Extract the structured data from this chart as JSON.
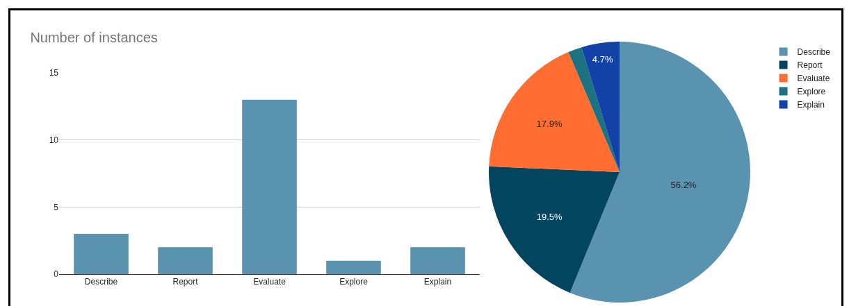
{
  "chart_data": [
    {
      "type": "bar",
      "title": "Number of instances",
      "categories": [
        "Describe",
        "Report",
        "Evaluate",
        "Explore",
        "Explain"
      ],
      "values": [
        3,
        2,
        13,
        1,
        2
      ],
      "color": "#5a93b0",
      "ylim": [
        0,
        15
      ],
      "yticks": [
        0,
        5,
        10,
        15
      ],
      "grid": "y",
      "legend": false
    },
    {
      "type": "pie",
      "categories": [
        "Describe",
        "Report",
        "Evaluate",
        "Explore",
        "Explain"
      ],
      "values": [
        56.2,
        19.5,
        17.9,
        1.7,
        4.7
      ],
      "colors": [
        "#5a93b0",
        "#03455f",
        "#ff6d31",
        "#1d7281",
        "#1241a8"
      ],
      "value_labels": [
        "56.2%",
        "19.5%",
        "17.9%",
        null,
        "4.7%"
      ],
      "legend": "top right"
    }
  ]
}
